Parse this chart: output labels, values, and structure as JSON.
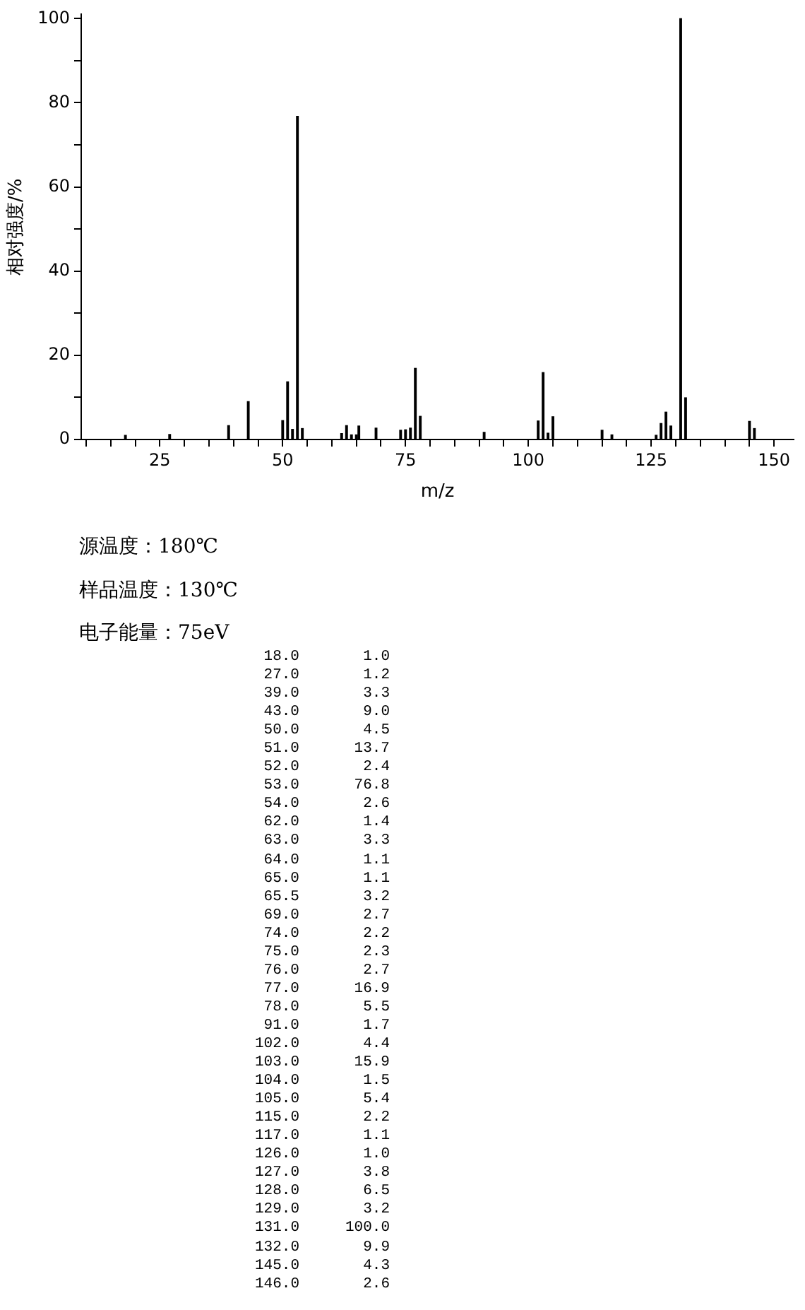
{
  "chart_data": {
    "type": "bar",
    "xlabel": "m/z",
    "ylabel": "相对强度/%",
    "x": [
      18,
      27,
      39,
      43,
      50,
      51,
      52,
      53,
      54,
      62,
      63,
      64,
      65,
      65.5,
      69,
      74,
      75,
      76,
      77,
      78,
      91,
      102,
      103,
      104,
      105,
      115,
      117,
      126,
      127,
      128,
      129,
      131,
      132,
      145,
      146
    ],
    "values": [
      1.0,
      1.2,
      3.3,
      9.0,
      4.5,
      13.7,
      2.4,
      76.8,
      2.6,
      1.4,
      3.3,
      1.1,
      1.1,
      3.2,
      2.7,
      2.2,
      2.3,
      2.7,
      16.9,
      5.5,
      1.7,
      4.4,
      15.9,
      1.5,
      5.4,
      2.2,
      1.1,
      1.0,
      3.8,
      6.5,
      3.2,
      100.0,
      9.9,
      4.3,
      2.6
    ],
    "color": "#000000",
    "xlim": [
      9,
      154
    ],
    "xticks": [
      {
        "value": 10,
        "label": null
      },
      {
        "value": 15,
        "label": null
      },
      {
        "value": 20,
        "label": null
      },
      25,
      {
        "value": 30,
        "label": null
      },
      {
        "value": 35,
        "label": null
      },
      {
        "value": 40,
        "label": null
      },
      {
        "value": 45,
        "label": null
      },
      50,
      {
        "value": 55,
        "label": null
      },
      {
        "value": 60,
        "label": null
      },
      {
        "value": 65,
        "label": null
      },
      {
        "value": 70,
        "label": null
      },
      75,
      {
        "value": 80,
        "label": null
      },
      {
        "value": 85,
        "label": null
      },
      {
        "value": 90,
        "label": null
      },
      {
        "value": 95,
        "label": null
      },
      100,
      {
        "value": 105,
        "label": null
      },
      {
        "value": 110,
        "label": null
      },
      {
        "value": 115,
        "label": null
      },
      {
        "value": 120,
        "label": null
      },
      125,
      {
        "value": 130,
        "label": null
      },
      {
        "value": 135,
        "label": null
      },
      {
        "value": 140,
        "label": null
      },
      {
        "value": 145,
        "label": null
      },
      150
    ],
    "ylim": [
      0,
      101
    ],
    "yticks": [
      0,
      {
        "value": 10,
        "label": null
      },
      20,
      {
        "value": 30,
        "label": null
      },
      40,
      {
        "value": 50,
        "label": null
      },
      60,
      {
        "value": 70,
        "label": null
      },
      80,
      {
        "value": 90,
        "label": null
      },
      100
    ],
    "grid": false,
    "legend": false,
    "annotations": [
      "源温度：180℃",
      "样品温度：130℃",
      "电子能量：75eV",
      "18.0",
      "1.0",
      "27.0",
      "1.2",
      "39.0",
      "3.3",
      "43.0",
      "9.0",
      "50.0",
      "4.5",
      "51.0",
      "13.7",
      "52.0",
      "2.4",
      "53.0",
      "76.8",
      "54.0",
      "2.6",
      "62.0",
      "1.4",
      "63.0",
      "3.3",
      "64.0",
      "1.1",
      "65.0",
      "1.1",
      "65.5",
      "3.2",
      "69.0",
      "2.7",
      "74.0",
      "2.2",
      "75.0",
      "2.3",
      "76.0",
      "2.7",
      "77.0",
      "16.9",
      "78.0",
      "5.5",
      "91.0",
      "1.7",
      "102.0",
      "4.4",
      "103.0",
      "15.9",
      "104.0",
      "1.5",
      "105.0",
      "5.4",
      "115.0",
      "2.2",
      "117.0",
      "1.1",
      "126.0",
      "1.0",
      "127.0",
      "3.8",
      "128.0",
      "6.5",
      "129.0",
      "3.2",
      "131.0",
      "100.0",
      "132.0",
      "9.9",
      "145.0",
      "4.3",
      "146.0",
      "2.6"
    ]
  }
}
